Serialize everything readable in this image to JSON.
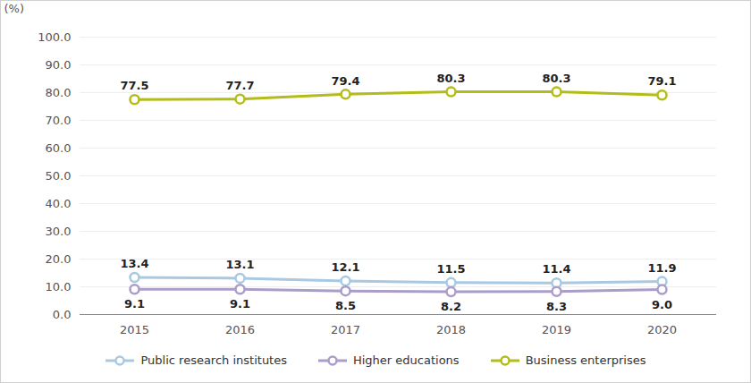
{
  "chart_data": {
    "type": "line",
    "y_label": "(%)",
    "categories": [
      "2015",
      "2016",
      "2017",
      "2018",
      "2019",
      "2020"
    ],
    "series": [
      {
        "name": "Public research institutes",
        "color": "#a9c9e2",
        "marker": "circle",
        "values": [
          13.4,
          13.1,
          12.1,
          11.5,
          11.4,
          11.9
        ],
        "value_labels": [
          "13.4",
          "13.1",
          "12.1",
          "11.5",
          "11.4",
          "11.9"
        ]
      },
      {
        "name": "Higher educations",
        "color": "#ab9dc9",
        "marker": "circle",
        "values": [
          9.1,
          9.1,
          8.5,
          8.2,
          8.3,
          9.0
        ],
        "value_labels": [
          "9.1",
          "9.1",
          "8.5",
          "8.2",
          "8.3",
          "9.0"
        ]
      },
      {
        "name": "Business enterprises",
        "color": "#b4bc1a",
        "marker": "circle",
        "values": [
          77.5,
          77.7,
          79.4,
          80.3,
          80.3,
          79.1
        ],
        "value_labels": [
          "77.5",
          "77.7",
          "79.4",
          "80.3",
          "80.3",
          "79.1"
        ]
      }
    ],
    "ylim": [
      0,
      100
    ],
    "yticks": [
      {
        "value": 0,
        "label": "0.0"
      },
      {
        "value": 10,
        "label": "10.0"
      },
      {
        "value": 20,
        "label": "20.0"
      },
      {
        "value": 30,
        "label": "30.0"
      },
      {
        "value": 40,
        "label": "40.0"
      },
      {
        "value": 50,
        "label": "50.0"
      },
      {
        "value": 60,
        "label": "60.0"
      },
      {
        "value": 70,
        "label": "70.0"
      },
      {
        "value": 80,
        "label": "80.0"
      },
      {
        "value": 90,
        "label": "90.0"
      },
      {
        "value": 100,
        "label": "100.0"
      }
    ],
    "grid": true,
    "data_labels": true,
    "legend": "bottom"
  }
}
